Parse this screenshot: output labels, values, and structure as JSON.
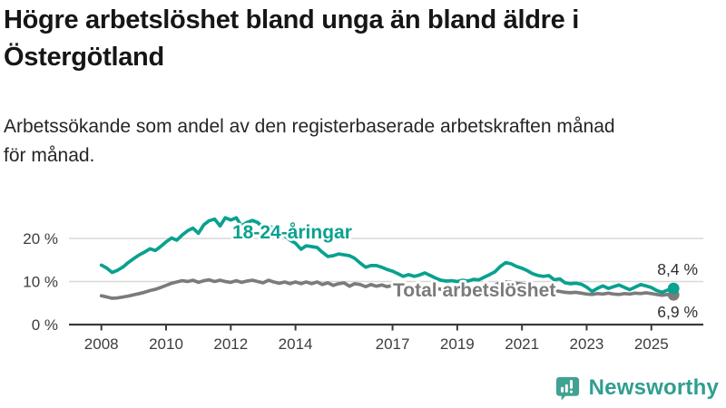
{
  "header": {
    "title": "Högre arbetslöshet bland unga än bland äldre i\nÖstergötland",
    "subtitle": "Arbetssökande som andel av den registerbaserade arbetskraften månad\nför månad."
  },
  "footer": {
    "brand": "Newsworthy"
  },
  "colors": {
    "accent_teal": "#09a190",
    "line_gray": "#7b7b7b",
    "grid": "#d8d8d8",
    "axis": "#3a3a3a",
    "axis_text": "#3d3d3d",
    "value_text": "#2e2e2e",
    "logo_bubble": "#40a292",
    "logo_text": "#2f9e90"
  },
  "chart_data": {
    "type": "line",
    "title": "Högre arbetslöshet bland unga än bland äldre i Östergötland",
    "ylabel": "",
    "xlabel": "",
    "unit": "%",
    "grid": "horizontal",
    "x_axis": {
      "ticks": [
        2008,
        2010,
        2012,
        2014,
        2017,
        2019,
        2021,
        2023,
        2025
      ],
      "tick_labels": [
        "2008",
        "2010",
        "2012",
        "2014",
        "2017",
        "2019",
        "2021",
        "2023",
        "2025"
      ],
      "range": [
        2007.0,
        2026.6
      ]
    },
    "y_axis": {
      "ticks": [
        0,
        10,
        20
      ],
      "tick_labels": [
        "0 %",
        "10 %",
        "20 %"
      ],
      "range": [
        0,
        27.5
      ]
    },
    "series": [
      {
        "name": "Total arbetslöshet",
        "color": "#7b7b7b",
        "end_label": "6,9 %",
        "end_value": 6.9,
        "points": [
          [
            2008.0,
            6.7
          ],
          [
            2008.17,
            6.4
          ],
          [
            2008.33,
            6.1
          ],
          [
            2008.5,
            6.2
          ],
          [
            2008.67,
            6.4
          ],
          [
            2008.83,
            6.6
          ],
          [
            2009.0,
            6.9
          ],
          [
            2009.17,
            7.2
          ],
          [
            2009.33,
            7.5
          ],
          [
            2009.5,
            7.9
          ],
          [
            2009.67,
            8.2
          ],
          [
            2009.83,
            8.6
          ],
          [
            2010.0,
            9.1
          ],
          [
            2010.17,
            9.6
          ],
          [
            2010.33,
            9.9
          ],
          [
            2010.5,
            10.2
          ],
          [
            2010.67,
            10.0
          ],
          [
            2010.83,
            10.3
          ],
          [
            2011.0,
            9.8
          ],
          [
            2011.17,
            10.2
          ],
          [
            2011.33,
            10.4
          ],
          [
            2011.5,
            10.0
          ],
          [
            2011.67,
            10.3
          ],
          [
            2011.83,
            10.0
          ],
          [
            2012.0,
            9.8
          ],
          [
            2012.17,
            10.2
          ],
          [
            2012.33,
            9.8
          ],
          [
            2012.5,
            10.1
          ],
          [
            2012.67,
            10.3
          ],
          [
            2012.83,
            10.0
          ],
          [
            2013.0,
            9.7
          ],
          [
            2013.17,
            10.3
          ],
          [
            2013.33,
            9.9
          ],
          [
            2013.5,
            9.6
          ],
          [
            2013.67,
            9.9
          ],
          [
            2013.83,
            9.5
          ],
          [
            2014.0,
            9.9
          ],
          [
            2014.17,
            9.5
          ],
          [
            2014.33,
            9.9
          ],
          [
            2014.5,
            9.5
          ],
          [
            2014.67,
            9.9
          ],
          [
            2014.83,
            9.3
          ],
          [
            2015.0,
            9.7
          ],
          [
            2015.17,
            9.1
          ],
          [
            2015.33,
            9.5
          ],
          [
            2015.5,
            9.7
          ],
          [
            2015.67,
            8.9
          ],
          [
            2015.83,
            9.5
          ],
          [
            2016.0,
            9.3
          ],
          [
            2016.17,
            8.8
          ],
          [
            2016.33,
            9.3
          ],
          [
            2016.5,
            8.9
          ],
          [
            2016.67,
            9.2
          ],
          [
            2016.83,
            8.8
          ],
          [
            2017.0,
            9.1
          ],
          [
            2017.17,
            8.7
          ],
          [
            2017.33,
            8.9
          ],
          [
            2017.5,
            8.6
          ],
          [
            2017.67,
            8.8
          ],
          [
            2017.83,
            8.4
          ],
          [
            2018.0,
            8.6
          ],
          [
            2018.17,
            8.3
          ],
          [
            2018.33,
            8.4
          ],
          [
            2018.5,
            8.2
          ],
          [
            2018.67,
            8.3
          ],
          [
            2018.83,
            8.1
          ],
          [
            2019.0,
            8.2
          ],
          [
            2019.17,
            8.1
          ],
          [
            2019.33,
            8.2
          ],
          [
            2019.5,
            8.3
          ],
          [
            2019.67,
            8.4
          ],
          [
            2019.83,
            8.5
          ],
          [
            2020.0,
            8.7
          ],
          [
            2020.17,
            9.2
          ],
          [
            2020.33,
            9.7
          ],
          [
            2020.5,
            9.9
          ],
          [
            2020.67,
            9.8
          ],
          [
            2020.83,
            9.6
          ],
          [
            2021.0,
            9.4
          ],
          [
            2021.17,
            9.1
          ],
          [
            2021.33,
            8.8
          ],
          [
            2021.5,
            8.5
          ],
          [
            2021.67,
            8.3
          ],
          [
            2021.83,
            8.1
          ],
          [
            2022.0,
            7.9
          ],
          [
            2022.17,
            7.7
          ],
          [
            2022.33,
            7.5
          ],
          [
            2022.5,
            7.4
          ],
          [
            2022.67,
            7.5
          ],
          [
            2022.83,
            7.3
          ],
          [
            2023.0,
            7.1
          ],
          [
            2023.17,
            7.0
          ],
          [
            2023.33,
            7.2
          ],
          [
            2023.5,
            7.1
          ],
          [
            2023.67,
            7.3
          ],
          [
            2023.83,
            7.1
          ],
          [
            2024.0,
            7.0
          ],
          [
            2024.17,
            7.2
          ],
          [
            2024.33,
            7.1
          ],
          [
            2024.5,
            7.3
          ],
          [
            2024.67,
            7.2
          ],
          [
            2024.83,
            7.4
          ],
          [
            2025.0,
            7.2
          ],
          [
            2025.17,
            7.0
          ],
          [
            2025.33,
            6.8
          ],
          [
            2025.5,
            7.0
          ],
          [
            2025.63,
            6.9
          ]
        ]
      },
      {
        "name": "18-24-åringar",
        "color": "#09a190",
        "end_label": "8,4 %",
        "end_value": 8.4,
        "points": [
          [
            2008.0,
            13.8
          ],
          [
            2008.17,
            13.1
          ],
          [
            2008.33,
            12.1
          ],
          [
            2008.5,
            12.6
          ],
          [
            2008.67,
            13.4
          ],
          [
            2008.83,
            14.4
          ],
          [
            2009.0,
            15.3
          ],
          [
            2009.17,
            16.2
          ],
          [
            2009.33,
            16.8
          ],
          [
            2009.5,
            17.6
          ],
          [
            2009.67,
            17.2
          ],
          [
            2009.83,
            18.1
          ],
          [
            2010.0,
            19.2
          ],
          [
            2010.17,
            20.1
          ],
          [
            2010.33,
            19.6
          ],
          [
            2010.5,
            20.8
          ],
          [
            2010.67,
            21.8
          ],
          [
            2010.83,
            22.4
          ],
          [
            2011.0,
            21.2
          ],
          [
            2011.17,
            23.2
          ],
          [
            2011.33,
            24.1
          ],
          [
            2011.5,
            24.5
          ],
          [
            2011.67,
            22.9
          ],
          [
            2011.83,
            24.8
          ],
          [
            2012.0,
            24.3
          ],
          [
            2012.17,
            24.8
          ],
          [
            2012.33,
            22.9
          ],
          [
            2012.5,
            23.7
          ],
          [
            2012.67,
            24.2
          ],
          [
            2012.83,
            23.7
          ],
          [
            2013.0,
            22.5
          ],
          [
            2013.17,
            23.0
          ],
          [
            2013.33,
            22.3
          ],
          [
            2013.5,
            21.4
          ],
          [
            2013.67,
            20.6
          ],
          [
            2013.83,
            19.6
          ],
          [
            2014.0,
            18.9
          ],
          [
            2014.17,
            17.5
          ],
          [
            2014.33,
            18.3
          ],
          [
            2014.5,
            18.1
          ],
          [
            2014.67,
            17.9
          ],
          [
            2014.83,
            16.8
          ],
          [
            2015.0,
            15.8
          ],
          [
            2015.17,
            16.0
          ],
          [
            2015.33,
            16.4
          ],
          [
            2015.5,
            16.2
          ],
          [
            2015.67,
            16.0
          ],
          [
            2015.83,
            15.4
          ],
          [
            2016.0,
            14.3
          ],
          [
            2016.17,
            13.3
          ],
          [
            2016.33,
            13.7
          ],
          [
            2016.5,
            13.7
          ],
          [
            2016.67,
            13.3
          ],
          [
            2016.83,
            12.8
          ],
          [
            2017.0,
            12.4
          ],
          [
            2017.17,
            11.8
          ],
          [
            2017.33,
            11.2
          ],
          [
            2017.5,
            11.6
          ],
          [
            2017.67,
            11.2
          ],
          [
            2017.83,
            11.5
          ],
          [
            2018.0,
            12.0
          ],
          [
            2018.17,
            11.4
          ],
          [
            2018.33,
            10.8
          ],
          [
            2018.5,
            10.3
          ],
          [
            2018.67,
            10.1
          ],
          [
            2018.83,
            10.2
          ],
          [
            2019.0,
            10.0
          ],
          [
            2019.17,
            10.3
          ],
          [
            2019.33,
            10.1
          ],
          [
            2019.5,
            10.5
          ],
          [
            2019.67,
            10.4
          ],
          [
            2019.83,
            11.0
          ],
          [
            2020.0,
            11.6
          ],
          [
            2020.17,
            12.3
          ],
          [
            2020.33,
            13.5
          ],
          [
            2020.5,
            14.4
          ],
          [
            2020.67,
            14.1
          ],
          [
            2020.83,
            13.5
          ],
          [
            2021.0,
            13.1
          ],
          [
            2021.17,
            12.5
          ],
          [
            2021.33,
            11.8
          ],
          [
            2021.5,
            11.4
          ],
          [
            2021.67,
            11.2
          ],
          [
            2021.83,
            11.4
          ],
          [
            2022.0,
            10.4
          ],
          [
            2022.17,
            10.6
          ],
          [
            2022.33,
            9.7
          ],
          [
            2022.5,
            9.5
          ],
          [
            2022.67,
            9.6
          ],
          [
            2022.83,
            9.4
          ],
          [
            2023.0,
            8.7
          ],
          [
            2023.17,
            7.7
          ],
          [
            2023.33,
            8.4
          ],
          [
            2023.5,
            9.0
          ],
          [
            2023.67,
            8.4
          ],
          [
            2023.83,
            8.8
          ],
          [
            2024.0,
            9.2
          ],
          [
            2024.17,
            8.6
          ],
          [
            2024.33,
            8.1
          ],
          [
            2024.5,
            8.7
          ],
          [
            2024.67,
            9.3
          ],
          [
            2024.83,
            9.0
          ],
          [
            2025.0,
            8.6
          ],
          [
            2025.17,
            7.9
          ],
          [
            2025.33,
            7.5
          ],
          [
            2025.5,
            8.0
          ],
          [
            2025.63,
            8.4
          ]
        ]
      }
    ],
    "legend": "inline-labels"
  }
}
